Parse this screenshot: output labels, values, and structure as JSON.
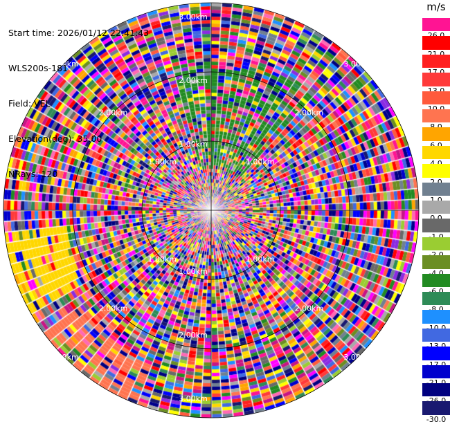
{
  "info": {
    "start_time": "Start time: 2026/01/12 22:41:43",
    "station": "WLS200s-181",
    "field": "Field: VEL",
    "elevation": "Elevation(deg): 35.00",
    "nrays": "NRays: 120"
  },
  "colorbar": {
    "unit": "m/s",
    "levels": [
      {
        "label": "26.0",
        "color": "#ff1493"
      },
      {
        "label": "21.0",
        "color": "#ff0000"
      },
      {
        "label": "17.0",
        "color": "#ff2020"
      },
      {
        "label": "13.0",
        "color": "#ff3a3a"
      },
      {
        "label": "10.0",
        "color": "#ff5a3c"
      },
      {
        "label": "8.0",
        "color": "#ff7450"
      },
      {
        "label": "6.0",
        "color": "#ffa500"
      },
      {
        "label": "4.0",
        "color": "#ffd700"
      },
      {
        "label": "2.0",
        "color": "#ffff00"
      },
      {
        "label": "1.0",
        "color": "#708090"
      },
      {
        "label": "0.0",
        "color": "#a9a9a9"
      },
      {
        "label": "-1.0",
        "color": "#696969"
      },
      {
        "label": "-2.0",
        "color": "#9acd32"
      },
      {
        "label": "-4.0",
        "color": "#6b8e23"
      },
      {
        "label": "-6.0",
        "color": "#228b22"
      },
      {
        "label": "-8.0",
        "color": "#2e8b57"
      },
      {
        "label": "-10.0",
        "color": "#1e90ff"
      },
      {
        "label": "-13.0",
        "color": "#4169e1"
      },
      {
        "label": "-17.0",
        "color": "#0000ff"
      },
      {
        "label": "-21.0",
        "color": "#0000cd"
      },
      {
        "label": "-26.0",
        "color": "#000080"
      },
      {
        "label": "-30.0",
        "color": "#191970"
      }
    ]
  },
  "chart_data": {
    "type": "heatmap",
    "projection": "polar",
    "field": "VEL",
    "elevation_deg": 35.0,
    "n_rays": 120,
    "max_range_km": 3.0,
    "range_rings_km": [
      1.0,
      2.0,
      3.0
    ],
    "range_ring_labels": [
      "1.00km",
      "2.00km",
      "3.00km"
    ],
    "grid": true,
    "dominant_values_ms": {
      "inner_north_sector": -6.0,
      "outer_west_southwest_sector": 4.0,
      "outer_south_sector": 8.0,
      "elsewhere": "mixed, all levels"
    },
    "color_range_ms": [
      -30.0,
      26.0
    ]
  }
}
